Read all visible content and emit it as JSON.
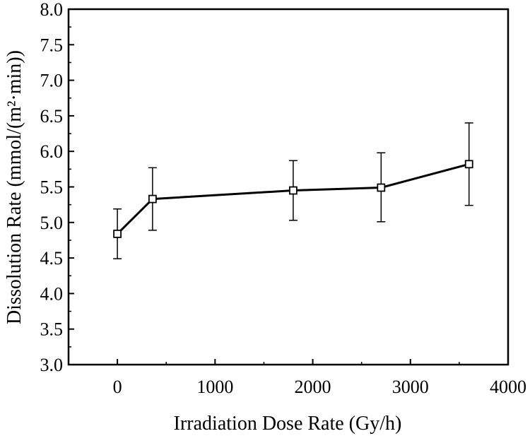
{
  "chart_data": {
    "type": "line",
    "title": "",
    "xlabel": "Irradiation Dose Rate (Gy/h)",
    "ylabel": "Dissolution Rate (mmol/(m²·min))",
    "xlim": [
      -500,
      4000
    ],
    "ylim": [
      3.0,
      8.0
    ],
    "xticks": [
      "0",
      "1000",
      "2000",
      "3000",
      "4000"
    ],
    "yticks": [
      "3.0",
      "3.5",
      "4.0",
      "4.5",
      "5.0",
      "5.5",
      "6.0",
      "6.5",
      "7.0",
      "7.5",
      "8.0"
    ],
    "grid": false,
    "marker": "open-square",
    "line_color": "#000000",
    "series": [
      {
        "x": [
          0,
          360,
          1800,
          2700,
          3600
        ],
        "y": [
          4.84,
          5.33,
          5.45,
          5.49,
          5.82
        ],
        "err_high": [
          5.19,
          5.77,
          5.87,
          5.98,
          6.4
        ],
        "err_low": [
          4.49,
          4.89,
          5.03,
          5.01,
          5.24
        ]
      }
    ]
  }
}
